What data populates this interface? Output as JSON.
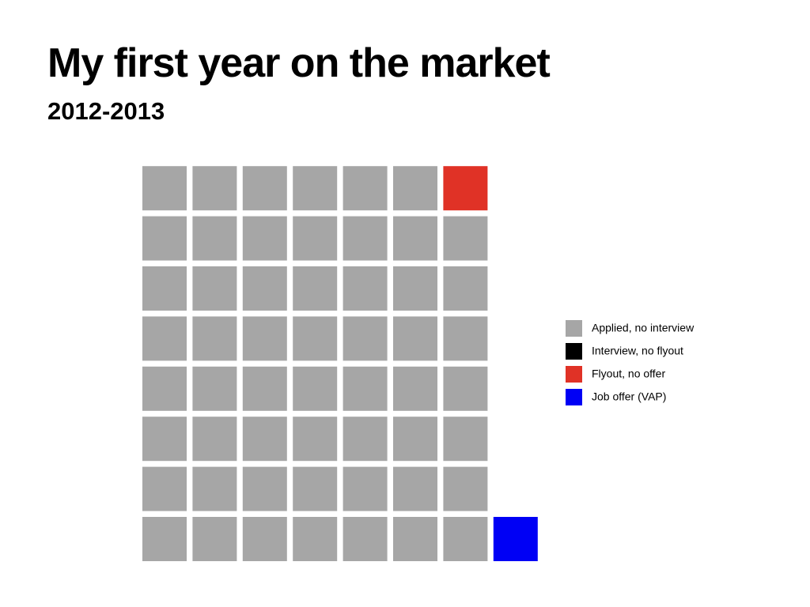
{
  "chart_data": {
    "type": "waffle",
    "title": "My first year on the market",
    "subtitle": "2012-2013",
    "rows": 8,
    "series": [
      {
        "name": "Applied, no interview",
        "color": "#a6a6a6",
        "values": 55
      },
      {
        "name": "Interview, no flyout",
        "color": "#000000",
        "values": 0
      },
      {
        "name": "Flyout, no offer",
        "color": "#e03226",
        "values": 1
      },
      {
        "name": "Job offer (VAP)",
        "color": "#0000f5",
        "values": 1
      }
    ]
  }
}
